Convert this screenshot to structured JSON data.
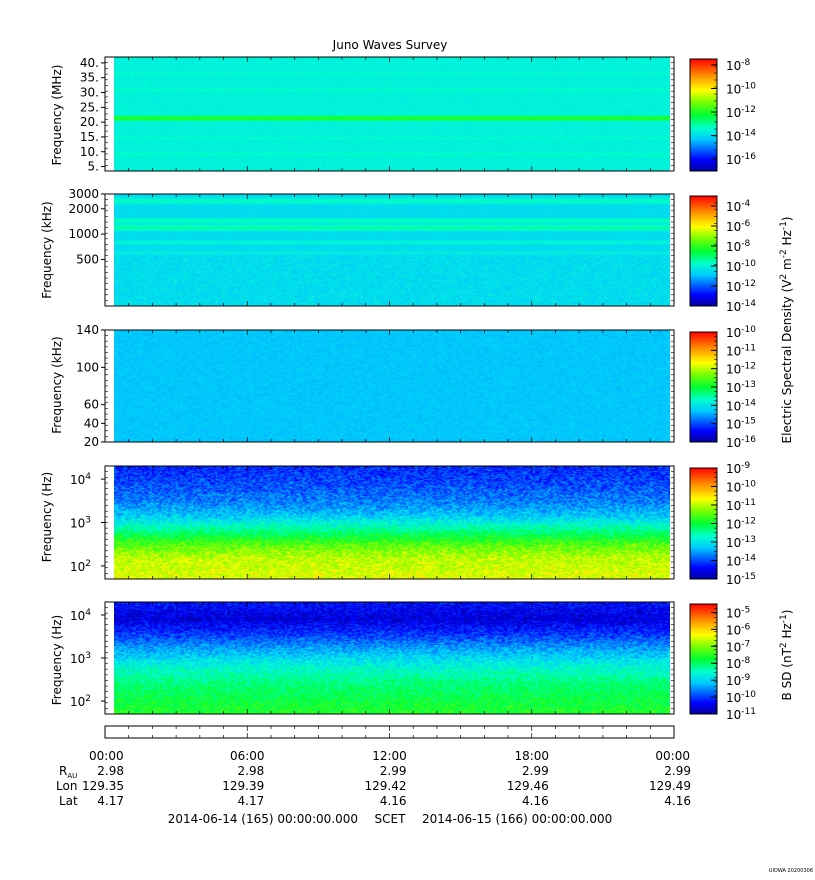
{
  "chart_data": {
    "type": "heatmap",
    "title": "Juno Waves Survey",
    "watermark": "UIOWA 20200306",
    "panels": [
      {
        "ylabel": "Frequency (MHz)",
        "yscale": "linear",
        "ylim": [
          3.5,
          42
        ],
        "yticks": [
          "40.",
          "35.",
          "30.",
          "25.",
          "20.",
          "15.",
          "10.",
          "5."
        ],
        "ytick_values": [
          40,
          35,
          30,
          25,
          20,
          15,
          10,
          5
        ],
        "colorbar": {
          "scale": "log",
          "range_exp": [
            -17,
            -7.5
          ],
          "ticks": [
            {
              "base": "10",
              "exp": "-8"
            },
            {
              "base": "10",
              "exp": "-10"
            },
            {
              "base": "10",
              "exp": "-12"
            },
            {
              "base": "10",
              "exp": "-14"
            },
            {
              "base": "10",
              "exp": "-16"
            }
          ],
          "tick_exp": [
            -8,
            -10,
            -12,
            -14,
            -16
          ],
          "minor_count": 16
        },
        "field": "electric",
        "background_exp": -13.6,
        "bands": [
          {
            "y_value": 21.3,
            "exp": -11.6,
            "width": 1.2
          },
          {
            "y_value": 31.0,
            "exp": -13.2,
            "width": 0.6
          },
          {
            "y_value": 9.0,
            "exp": -13.2,
            "width": 0.6
          },
          {
            "y_value": 36.5,
            "exp": -13.3,
            "width": 0.5
          },
          {
            "y_value": 14.5,
            "exp": -13.3,
            "width": 0.5
          }
        ]
      },
      {
        "ylabel": "Frequency (kHz)",
        "yscale": "log",
        "ylim": [
          140,
          3000
        ],
        "yticks": [
          "3000",
          "2000",
          "1000",
          "500"
        ],
        "ytick_values": [
          3000,
          2000,
          1000,
          500
        ],
        "colorbar": {
          "scale": "log",
          "range_exp": [
            -14,
            -3
          ],
          "ticks": [
            {
              "base": "10",
              "exp": "-4"
            },
            {
              "base": "10",
              "exp": "-6"
            },
            {
              "base": "10",
              "exp": "-8"
            },
            {
              "base": "10",
              "exp": "-10"
            },
            {
              "base": "10",
              "exp": "-12"
            },
            {
              "base": "10",
              "exp": "-14"
            }
          ],
          "tick_exp": [
            -4,
            -6,
            -8,
            -10,
            -12,
            -14
          ],
          "minor_count": 16
        },
        "field": "electric",
        "background_exp": -10.5,
        "bands": [
          {
            "y_value": 2500,
            "exp": -9.6,
            "width": 0.05
          },
          {
            "y_value": 1450,
            "exp": -9.4,
            "width": 0.04
          },
          {
            "y_value": 1200,
            "exp": -9.2,
            "width": 0.05
          },
          {
            "y_value": 800,
            "exp": -9.8,
            "width": 0.03
          },
          {
            "y_value": 600,
            "exp": -10.1,
            "width": 0.03
          }
        ]
      },
      {
        "ylabel": "Frequency (kHz)",
        "yscale": "linear",
        "ylim": [
          20,
          140
        ],
        "yticks": [
          "140",
          "100",
          "60",
          "40",
          "20"
        ],
        "ytick_values": [
          140,
          100,
          60,
          40,
          20
        ],
        "colorbar": {
          "scale": "log",
          "range_exp": [
            -16,
            -10
          ],
          "ticks": [
            {
              "base": "10",
              "exp": "-10"
            },
            {
              "base": "10",
              "exp": "-11"
            },
            {
              "base": "10",
              "exp": "-12"
            },
            {
              "base": "10",
              "exp": "-13"
            },
            {
              "base": "10",
              "exp": "-14"
            },
            {
              "base": "10",
              "exp": "-15"
            },
            {
              "base": "10",
              "exp": "-16"
            }
          ],
          "tick_exp": [
            -10,
            -11,
            -12,
            -13,
            -14,
            -15,
            -16
          ],
          "minor_count": 24
        },
        "field": "electric",
        "background_exp": -14.3,
        "bands": []
      },
      {
        "ylabel": "Frequency (Hz)",
        "yscale": "log",
        "ylim": [
          50,
          20000
        ],
        "yticks": [
          {
            "base": "10",
            "exp": "4"
          },
          {
            "base": "10",
            "exp": "3"
          },
          {
            "base": "10",
            "exp": "2"
          }
        ],
        "ytick_values": [
          10000,
          1000,
          100
        ],
        "colorbar": {
          "scale": "log",
          "range_exp": [
            -15,
            -9
          ],
          "ticks": [
            {
              "base": "10",
              "exp": "-9"
            },
            {
              "base": "10",
              "exp": "-10"
            },
            {
              "base": "10",
              "exp": "-11"
            },
            {
              "base": "10",
              "exp": "-12"
            },
            {
              "base": "10",
              "exp": "-13"
            },
            {
              "base": "10",
              "exp": "-14"
            },
            {
              "base": "10",
              "exp": "-15"
            }
          ],
          "tick_exp": [
            -9,
            -10,
            -11,
            -12,
            -13,
            -14,
            -15
          ],
          "minor_count": 24
        },
        "field": "electric",
        "profile": [
          {
            "y_value": 20000,
            "exp": -14.2
          },
          {
            "y_value": 8000,
            "exp": -14.0
          },
          {
            "y_value": 3000,
            "exp": -13.7
          },
          {
            "y_value": 1500,
            "exp": -13.3
          },
          {
            "y_value": 700,
            "exp": -12.5
          },
          {
            "y_value": 300,
            "exp": -11.5
          },
          {
            "y_value": 150,
            "exp": -11.0
          },
          {
            "y_value": 50,
            "exp": -10.8
          }
        ]
      },
      {
        "ylabel": "Frequency (Hz)",
        "yscale": "log",
        "ylim": [
          50,
          20000
        ],
        "yticks": [
          {
            "base": "10",
            "exp": "4"
          },
          {
            "base": "10",
            "exp": "3"
          },
          {
            "base": "10",
            "exp": "2"
          }
        ],
        "ytick_values": [
          10000,
          1000,
          100
        ],
        "colorbar": {
          "scale": "log",
          "range_exp": [
            -11,
            -4.5
          ],
          "ticks": [
            {
              "base": "10",
              "exp": "-5"
            },
            {
              "base": "10",
              "exp": "-6"
            },
            {
              "base": "10",
              "exp": "-7"
            },
            {
              "base": "10",
              "exp": "-8"
            },
            {
              "base": "10",
              "exp": "-9"
            },
            {
              "base": "10",
              "exp": "-10"
            },
            {
              "base": "10",
              "exp": "-11"
            }
          ],
          "tick_exp": [
            -5,
            -6,
            -7,
            -8,
            -9,
            -10,
            -11
          ],
          "minor_count": 24
        },
        "field": "magnetic",
        "profile": [
          {
            "y_value": 20000,
            "exp": -10.3
          },
          {
            "y_value": 8000,
            "exp": -10.6
          },
          {
            "y_value": 3000,
            "exp": -9.9
          },
          {
            "y_value": 1500,
            "exp": -9.3
          },
          {
            "y_value": 600,
            "exp": -8.6
          },
          {
            "y_value": 250,
            "exp": -8.1
          },
          {
            "y_value": 100,
            "exp": -7.8
          },
          {
            "y_value": 50,
            "exp": -7.6
          }
        ]
      }
    ],
    "colorbar_labels": {
      "electric": {
        "pre": "Electric Spectral Density (V",
        "mid1": " m",
        "mid2": " Hz",
        "post": ")",
        "sup1": "2",
        "sup2": "-2",
        "sup3": "-1"
      },
      "magnetic": {
        "pre": "B SD (nT",
        "mid2": " Hz",
        "post": ")",
        "sup1": "2",
        "sup3": "-1"
      }
    },
    "x_axis": {
      "hours": [
        0,
        6,
        12,
        18,
        24
      ],
      "time_labels": [
        "00:00",
        "06:00",
        "12:00",
        "18:00",
        "00:00"
      ],
      "rows": [
        {
          "label": "R",
          "sub": "AU",
          "values": [
            "2.98",
            "2.98",
            "2.99",
            "2.99",
            "2.99"
          ]
        },
        {
          "label": "Lon",
          "values": [
            "129.35",
            "129.39",
            "129.42",
            "129.46",
            "129.49"
          ]
        },
        {
          "label": "Lat",
          "values": [
            "4.17",
            "4.17",
            "4.16",
            "4.16",
            "4.16"
          ]
        }
      ],
      "start": "2014-06-14 (165) 00:00:00.000",
      "frame": "SCET",
      "end": "2014-06-15 (166) 00:00:00.000"
    }
  }
}
